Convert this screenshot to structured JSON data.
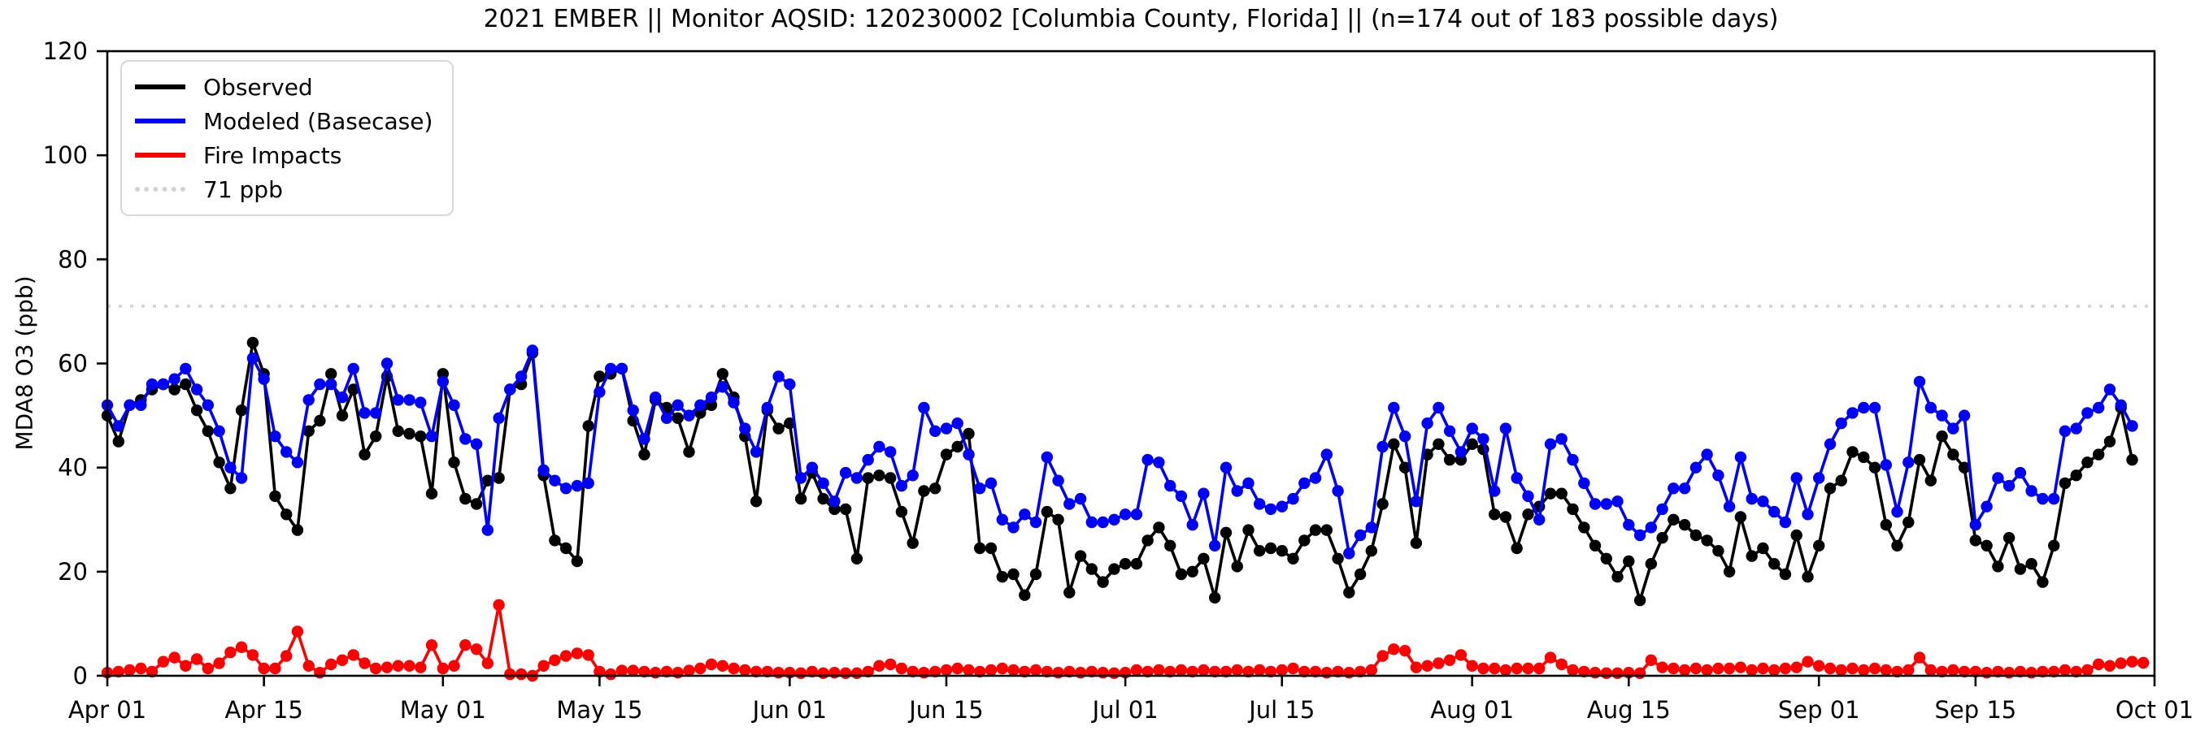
{
  "title": "2021 EMBER || Monitor AQSID: 120230002 [Columbia County, Florida] || (n=174 out of 183 possible days)",
  "legend": {
    "items": [
      {
        "label": "Observed",
        "color": "#000000",
        "style": "solid"
      },
      {
        "label": "Modeled (Basecase)",
        "color": "#0000ff",
        "style": "solid"
      },
      {
        "label": "Fire Impacts",
        "color": "#ff0000",
        "style": "solid"
      },
      {
        "label": "71 ppb",
        "color": "#d3d3d3",
        "style": "dotted"
      }
    ]
  },
  "chart_data": {
    "type": "line",
    "title": "2021 EMBER || Monitor AQSID: 120230002 [Columbia County, Florida] || (n=174 out of 183 possible days)",
    "xlabel": "",
    "ylabel": "MDA8 O3 (ppb)",
    "ylim": [
      0,
      120
    ],
    "y_ticks": [
      0,
      20,
      40,
      60,
      80,
      100,
      120
    ],
    "x_axis": {
      "unit": "day",
      "start_label": "Apr 01",
      "end_label": "Oct 01",
      "n_days": 183
    },
    "x_ticks": [
      {
        "day": 0,
        "label": "Apr 01"
      },
      {
        "day": 14,
        "label": "Apr 15"
      },
      {
        "day": 30,
        "label": "May 01"
      },
      {
        "day": 44,
        "label": "May 15"
      },
      {
        "day": 61,
        "label": "Jun 01"
      },
      {
        "day": 75,
        "label": "Jun 15"
      },
      {
        "day": 91,
        "label": "Jul 01"
      },
      {
        "day": 105,
        "label": "Jul 15"
      },
      {
        "day": 122,
        "label": "Aug 01"
      },
      {
        "day": 136,
        "label": "Aug 15"
      },
      {
        "day": 153,
        "label": "Sep 01"
      },
      {
        "day": 167,
        "label": "Sep 15"
      },
      {
        "day": 183,
        "label": "Oct 01"
      }
    ],
    "reference_line": {
      "value": 71,
      "label": "71 ppb",
      "color": "#d3d3d3",
      "style": "dotted"
    },
    "grid": false,
    "legend_position": "upper left",
    "series": [
      {
        "name": "Observed",
        "color": "#000000",
        "marker": "circle",
        "values": [
          50,
          45,
          52,
          53,
          55,
          56,
          55,
          56,
          51,
          47,
          41,
          36,
          51,
          64,
          58,
          34.5,
          31,
          28,
          47,
          49,
          58,
          50,
          55,
          42.5,
          46,
          57.5,
          47,
          46.5,
          46,
          35,
          58,
          41,
          34,
          33,
          37.5,
          38,
          55,
          56,
          62,
          38.5,
          26,
          24.5,
          22,
          48,
          57.5,
          58,
          59,
          49,
          42.5,
          53,
          51.5,
          49.5,
          43,
          50.5,
          52,
          58,
          53.5,
          46,
          33.5,
          51,
          47.5,
          48.5,
          34,
          39,
          34,
          32,
          32,
          22.5,
          38,
          38.5,
          38,
          31.5,
          25.5,
          35.5,
          36,
          42.5,
          44,
          46.5,
          24.5,
          24.5,
          19,
          19.5,
          15.5,
          19.5,
          31.5,
          30,
          16,
          23,
          20.5,
          18,
          20.5,
          21.5,
          21.5,
          26,
          28.5,
          25,
          19.5,
          20,
          22.5,
          15,
          27.5,
          21,
          28,
          24,
          24.5,
          24,
          22.5,
          26,
          28,
          28,
          22.5,
          16,
          19.5,
          24,
          33,
          44.5,
          40,
          25.5,
          42.5,
          44.5,
          41.5,
          41.5,
          44.5,
          43.5,
          31,
          30.5,
          24.5,
          31,
          32.5,
          35,
          35,
          32,
          28.5,
          25,
          22.5,
          19,
          22,
          14.5,
          21.5,
          26.5,
          30,
          29,
          27,
          26,
          24,
          20,
          30.5,
          23,
          24.5,
          21.5,
          19.5,
          27,
          19,
          25,
          36,
          37.5,
          43,
          42,
          40,
          29,
          25,
          29.5,
          41.5,
          37.5,
          46,
          42.5,
          40,
          26,
          25,
          21,
          26.5,
          20.5,
          21.5,
          18,
          25,
          37,
          38.5,
          41,
          42.5,
          45,
          51.5,
          41.5,
          null
        ]
      },
      {
        "name": "Modeled (Basecase)",
        "color": "#0000ff",
        "marker": "circle",
        "values": [
          52,
          48,
          52,
          52,
          56,
          56,
          57,
          59,
          55,
          52,
          47,
          40,
          38,
          61,
          57,
          46,
          43,
          41,
          53,
          56,
          56,
          53.5,
          59,
          50.5,
          50.5,
          60,
          53,
          53,
          52.5,
          46,
          56.5,
          52,
          45.5,
          44.5,
          28,
          49.5,
          55,
          57.5,
          62.5,
          39.5,
          37.5,
          36,
          36.5,
          37,
          54.5,
          59,
          59,
          51,
          45.5,
          53.5,
          49.5,
          52,
          50,
          52,
          53.5,
          55.5,
          52.5,
          47.5,
          43,
          51.5,
          57.5,
          56,
          38,
          40,
          37,
          33.5,
          39,
          38,
          41.5,
          44,
          43,
          36.5,
          38.5,
          51.5,
          47,
          47.5,
          48.5,
          42.5,
          36,
          37,
          30,
          28.5,
          31,
          29.5,
          42,
          37.5,
          33,
          34,
          29.5,
          29.5,
          30,
          31,
          31,
          41.5,
          41,
          36.5,
          34.5,
          29,
          35,
          25,
          40,
          35.5,
          37,
          33,
          32,
          32.5,
          34,
          37,
          38,
          42.5,
          35.5,
          23.5,
          27,
          28.5,
          44,
          51.5,
          46,
          33.5,
          48.5,
          51.5,
          47,
          43,
          47.5,
          45.5,
          35.5,
          47.5,
          38,
          34.5,
          30,
          44.5,
          45.5,
          41.5,
          37,
          33,
          33,
          33.5,
          29,
          27,
          28.5,
          32,
          36,
          36,
          40,
          42.5,
          38.5,
          32.5,
          42,
          34,
          33.5,
          31.5,
          29.5,
          38,
          31,
          38,
          44.5,
          48.5,
          50.5,
          51.5,
          51.5,
          40.5,
          31.5,
          41,
          56.5,
          51.5,
          50,
          47.5,
          50,
          29,
          32.5,
          38,
          36.5,
          39,
          35.5,
          34,
          34,
          47,
          47.5,
          50.5,
          51.5,
          55,
          52,
          48,
          null
        ]
      },
      {
        "name": "Fire Impacts",
        "color": "#ff0000",
        "marker": "circle",
        "values": [
          0.6,
          0.8,
          1.1,
          1.4,
          0.8,
          2.7,
          3.5,
          1.9,
          3.2,
          1.4,
          2.4,
          4.5,
          5.5,
          4,
          1.4,
          1.4,
          3.8,
          8.5,
          1.9,
          0.6,
          2.2,
          3,
          4,
          2.4,
          1.4,
          1.6,
          1.9,
          1.9,
          1.6,
          5.9,
          1.4,
          1.9,
          5.9,
          5.1,
          2.4,
          13.6,
          0.3,
          0.3,
          0,
          1.9,
          3,
          3.8,
          4.3,
          4,
          0.8,
          0.3,
          1,
          1,
          0.8,
          0.6,
          0.8,
          0.6,
          1,
          1.4,
          2.2,
          1.9,
          1.4,
          1.1,
          0.8,
          0.8,
          0.6,
          0.6,
          0.5,
          0.8,
          0.5,
          0.6,
          0.5,
          0.5,
          0.8,
          1.9,
          2.2,
          1.4,
          0.8,
          0.6,
          0.8,
          1.1,
          1.4,
          1.1,
          0.8,
          1.1,
          1.4,
          1.1,
          0.8,
          1.1,
          0.8,
          0.6,
          0.8,
          0.6,
          0.8,
          0.6,
          0.5,
          0.6,
          1.1,
          0.8,
          1.1,
          0.8,
          1.1,
          0.8,
          1.1,
          0.8,
          0.8,
          1.1,
          0.8,
          1.1,
          0.8,
          1.1,
          1.4,
          0.8,
          0.8,
          0.6,
          0.8,
          0.6,
          0.8,
          1.1,
          3.8,
          5.1,
          4.8,
          1.6,
          1.9,
          2.4,
          3,
          4,
          1.9,
          1.4,
          1.4,
          1.1,
          1.4,
          1.4,
          1.4,
          3.5,
          2.2,
          1.1,
          0.8,
          0.6,
          0.5,
          0.5,
          0.6,
          0.5,
          3,
          1.6,
          1.4,
          1.1,
          1.4,
          1.1,
          1.4,
          1.4,
          1.6,
          1.1,
          1.4,
          1.1,
          1.4,
          1.6,
          2.7,
          1.9,
          1.4,
          1.1,
          1.4,
          1.1,
          1.4,
          1.1,
          0.8,
          1.1,
          3.5,
          1.1,
          0.8,
          1.1,
          0.8,
          0.8,
          0.6,
          0.8,
          0.6,
          0.8,
          0.6,
          0.8,
          0.8,
          1.1,
          0.8,
          1.1,
          2.2,
          1.9,
          2.4,
          2.7,
          2.5
        ]
      }
    ]
  }
}
